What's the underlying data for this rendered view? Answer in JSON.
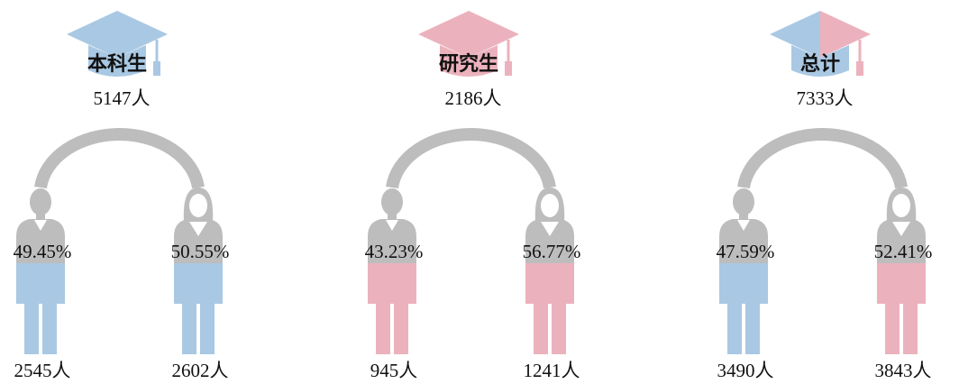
{
  "groups": [
    {
      "label": "本科生",
      "total": "5147人",
      "male": {
        "percent": "49.45%",
        "count": "2545人"
      },
      "female": {
        "percent": "50.55%",
        "count": "2602人"
      }
    },
    {
      "label": "研究生",
      "total": "2186人",
      "male": {
        "percent": "43.23%",
        "count": "945人"
      },
      "female": {
        "percent": "56.77%",
        "count": "1241人"
      }
    },
    {
      "label": "总计",
      "total": "7333人",
      "male": {
        "percent": "47.59%",
        "count": "3490人"
      },
      "female": {
        "percent": "52.41%",
        "count": "3843人"
      }
    }
  ]
}
